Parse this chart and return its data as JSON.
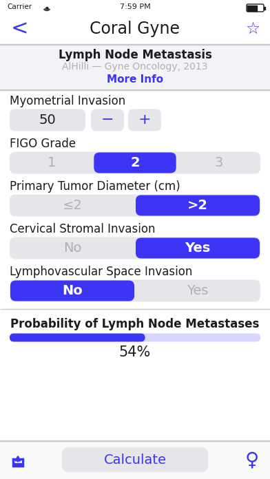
{
  "bg_color": "#f2f2f7",
  "white": "#ffffff",
  "purple": "#3d35f5",
  "light_purple": "#d8d5ff",
  "gray_btn": "#e5e5ea",
  "gray_text": "#b0b0b5",
  "dark_text": "#1c1c1e",
  "status_bar": "7:59 PM",
  "carrier": "Carrier",
  "title": "Coral Gyne",
  "subtitle_bold": "Lymph Node Metastasis",
  "subtitle_light": "AlHilli — Gyne Oncology, 2013",
  "more_info": "More Info",
  "section1_label": "Myometrial Invasion",
  "section1_value": "50",
  "section2_label": "FIGO Grade",
  "section2_options": [
    "1",
    "2",
    "3"
  ],
  "section2_selected": 1,
  "section3_label": "Primary Tumor Diameter (cm)",
  "section3_options": [
    "≤2",
    ">2"
  ],
  "section3_selected": 1,
  "section4_label": "Cervical Stromal Invasion",
  "section4_options": [
    "No",
    "Yes"
  ],
  "section4_selected": 1,
  "section5_label": "Lymphovascular Space Invasion",
  "section5_options": [
    "No",
    "Yes"
  ],
  "section5_selected": 0,
  "result_label": "Probability of Lymph Node Metastases",
  "result_value": "54%",
  "result_pct": 0.54,
  "calc_btn": "Calculate",
  "sep_color": "#c8c7cc",
  "tab_bg": "#f9f9f9"
}
